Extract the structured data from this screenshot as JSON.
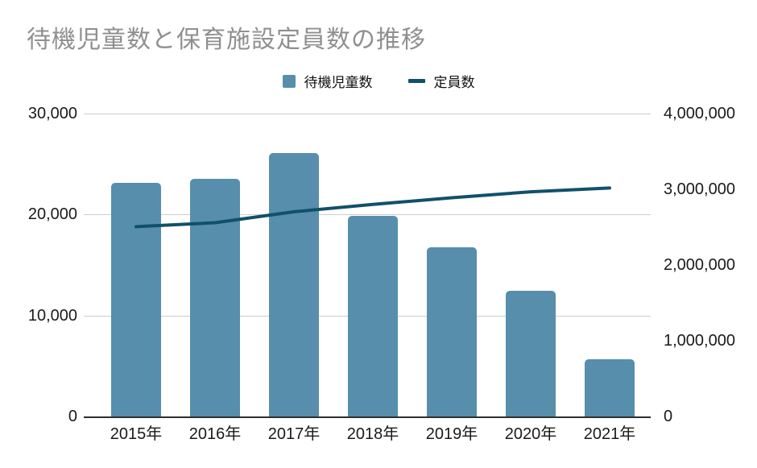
{
  "title": "待機児童数と保育施設定員数の推移",
  "colors": {
    "title": "#8F8F8F",
    "bar": "#578EAC",
    "line": "#11506B",
    "grid": "#CDCDCD",
    "tick_label": "#1A1A1A"
  },
  "legend": {
    "items": [
      {
        "label": "待機児童数",
        "marker": "square"
      },
      {
        "label": "定員数",
        "marker": "dash"
      }
    ]
  },
  "chart_data": {
    "type": "bar",
    "subtype": "combo-bar-line",
    "title": "待機児童数と保育施設定員数の推移",
    "categories": [
      "2015年",
      "2016年",
      "2017年",
      "2018年",
      "2019年",
      "2020年",
      "2021年"
    ],
    "series": [
      {
        "name": "待機児童数",
        "type": "bar",
        "axis": "left",
        "color": "#578EAC",
        "values": [
          23167,
          23553,
          26081,
          19895,
          16772,
          12439,
          5634
        ]
      },
      {
        "name": "定員数",
        "type": "line",
        "axis": "right",
        "color": "#11506B",
        "values": [
          2506000,
          2559000,
          2703000,
          2800000,
          2888000,
          2967000,
          3017000
        ]
      }
    ],
    "left_axis": {
      "min": 0,
      "max": 30000,
      "tick_values": [
        30000,
        20000,
        10000,
        0
      ],
      "tick_labels": [
        "30,000",
        "20,000",
        "10,000",
        "0"
      ]
    },
    "right_axis": {
      "min": 0,
      "max": 4000000,
      "tick_values": [
        4000000,
        3000000,
        2000000,
        1000000,
        0
      ],
      "tick_labels": [
        "4,000,000",
        "3,000,000",
        "2,000,000",
        "1,000,000",
        "0"
      ]
    },
    "grid": true,
    "legend_position": "top-center"
  }
}
